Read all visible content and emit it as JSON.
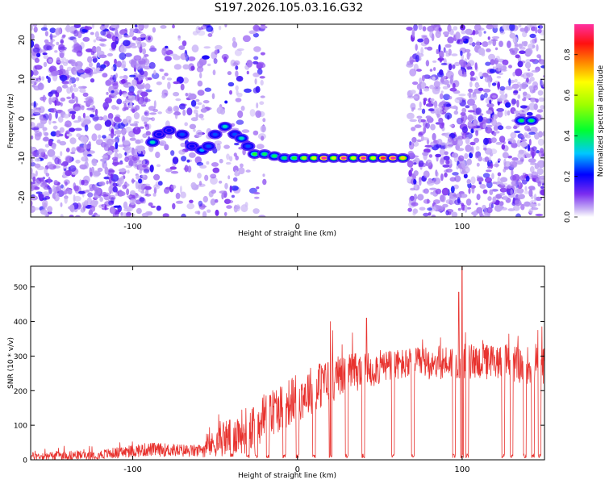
{
  "title": "S197.2026.105.03.16.G32",
  "colors": {
    "snr_line": "#e8332f",
    "heat_purple": "#7a2cf0",
    "heat_light": "#cfb6f7",
    "axis": "#000000"
  },
  "chart_data": [
    {
      "type": "heatmap",
      "name": "spectrogram",
      "xlabel": "Height of straight line (km)",
      "ylabel": "Frequency (Hz)",
      "xlim": [
        -162,
        150
      ],
      "ylim": [
        -25,
        24
      ],
      "xticks": [
        {
          "value": -100,
          "label": "-100"
        },
        {
          "value": 0,
          "label": "0"
        },
        {
          "value": 100,
          "label": "100"
        }
      ],
      "yticks": [
        {
          "value": -20,
          "label": "-20"
        },
        {
          "value": -10,
          "label": "-10"
        },
        {
          "value": 0,
          "label": "0"
        },
        {
          "value": 10,
          "label": "10"
        },
        {
          "value": 20,
          "label": "20"
        }
      ],
      "colorbar": {
        "label": "Normalized spectral amplitude",
        "range": [
          0,
          0.95
        ],
        "ticks": [
          {
            "value": 0.0,
            "label": "0.0"
          },
          {
            "value": 0.2,
            "label": "0.2"
          },
          {
            "value": 0.4,
            "label": "0.4"
          },
          {
            "value": 0.6,
            "label": "0.6"
          },
          {
            "value": 0.8,
            "label": "0.8"
          }
        ]
      },
      "noise_regions": [
        {
          "x": [
            -162,
            -90
          ],
          "density": 0.95
        },
        {
          "x": [
            -90,
            -20
          ],
          "density": 0.35
        },
        {
          "x": [
            68,
            150
          ],
          "density": 0.85
        }
      ],
      "signal_track": [
        {
          "x": -88,
          "y": -6,
          "amp": 0.35
        },
        {
          "x": -84,
          "y": -4,
          "amp": 0.2
        },
        {
          "x": -78,
          "y": -3,
          "amp": 0.2
        },
        {
          "x": -70,
          "y": -4,
          "amp": 0.25
        },
        {
          "x": -64,
          "y": -7,
          "amp": 0.2
        },
        {
          "x": -58,
          "y": -8,
          "amp": 0.3
        },
        {
          "x": -54,
          "y": -7,
          "amp": 0.25
        },
        {
          "x": -50,
          "y": -4,
          "amp": 0.25
        },
        {
          "x": -44,
          "y": -2,
          "amp": 0.35
        },
        {
          "x": -38,
          "y": -4,
          "amp": 0.25
        },
        {
          "x": -34,
          "y": -5,
          "amp": 0.35
        },
        {
          "x": -30,
          "y": -7,
          "amp": 0.25
        },
        {
          "x": -26,
          "y": -9,
          "amp": 0.45
        },
        {
          "x": -20,
          "y": -9,
          "amp": 0.4
        },
        {
          "x": -14,
          "y": -9.5,
          "amp": 0.4
        },
        {
          "x": -8,
          "y": -10,
          "amp": 0.4
        },
        {
          "x": -2,
          "y": -10,
          "amp": 0.45
        },
        {
          "x": 4,
          "y": -10,
          "amp": 0.55
        },
        {
          "x": 10,
          "y": -10,
          "amp": 0.6
        },
        {
          "x": 16,
          "y": -10,
          "amp": 0.95
        },
        {
          "x": 22,
          "y": -10,
          "amp": 0.6
        },
        {
          "x": 28,
          "y": -10,
          "amp": 0.95
        },
        {
          "x": 34,
          "y": -10,
          "amp": 0.6
        },
        {
          "x": 40,
          "y": -10,
          "amp": 0.95
        },
        {
          "x": 46,
          "y": -10,
          "amp": 0.6
        },
        {
          "x": 52,
          "y": -10,
          "amp": 0.9
        },
        {
          "x": 58,
          "y": -10,
          "amp": 0.95
        },
        {
          "x": 64,
          "y": -10,
          "amp": 0.7
        },
        {
          "x": 136,
          "y": -0.5,
          "amp": 0.4
        },
        {
          "x": 142,
          "y": -0.5,
          "amp": 0.4
        }
      ]
    },
    {
      "type": "line",
      "name": "snr",
      "xlabel": "Height of straight line (km)",
      "ylabel": "SNR (10 * v/v)",
      "xlim": [
        -162,
        150
      ],
      "ylim": [
        0,
        560
      ],
      "xticks": [
        {
          "value": -100,
          "label": "-100"
        },
        {
          "value": 0,
          "label": "0"
        },
        {
          "value": 100,
          "label": "100"
        }
      ],
      "yticks": [
        {
          "value": 0,
          "label": "0"
        },
        {
          "value": 100,
          "label": "100"
        },
        {
          "value": 200,
          "label": "200"
        },
        {
          "value": 300,
          "label": "300"
        },
        {
          "value": 400,
          "label": "400"
        },
        {
          "value": 500,
          "label": "500"
        }
      ],
      "envelope": [
        {
          "x": -162,
          "mean": 10,
          "spread": 12
        },
        {
          "x": -120,
          "mean": 15,
          "spread": 14
        },
        {
          "x": -90,
          "mean": 30,
          "spread": 20
        },
        {
          "x": -60,
          "mean": 25,
          "spread": 18
        },
        {
          "x": -45,
          "mean": 60,
          "spread": 50
        },
        {
          "x": -30,
          "mean": 90,
          "spread": 70
        },
        {
          "x": -15,
          "mean": 140,
          "spread": 70
        },
        {
          "x": 0,
          "mean": 180,
          "spread": 70
        },
        {
          "x": 15,
          "mean": 220,
          "spread": 70
        },
        {
          "x": 30,
          "mean": 250,
          "spread": 60
        },
        {
          "x": 60,
          "mean": 275,
          "spread": 45
        },
        {
          "x": 100,
          "mean": 285,
          "spread": 50
        },
        {
          "x": 130,
          "mean": 280,
          "spread": 55
        },
        {
          "x": 150,
          "mean": 270,
          "spread": 55
        }
      ],
      "dropouts": [
        -40,
        -30,
        -25,
        -18,
        -8,
        0,
        10,
        20,
        30,
        40,
        58,
        70,
        95,
        100,
        103,
        125,
        130,
        138,
        143,
        147
      ],
      "spikes": [
        {
          "x": 100,
          "y": 560
        },
        {
          "x": 98,
          "y": 485
        },
        {
          "x": 42,
          "y": 410
        },
        {
          "x": 20,
          "y": 400
        }
      ]
    }
  ]
}
